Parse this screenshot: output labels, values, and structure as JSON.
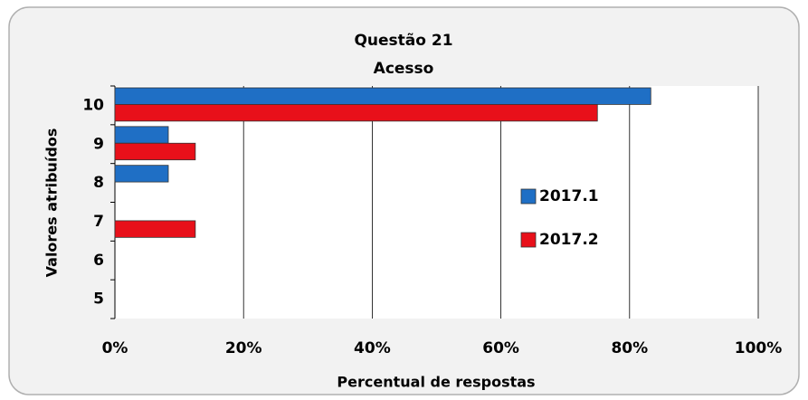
{
  "chart_data": {
    "type": "bar",
    "orientation": "horizontal",
    "title": "Questão 21",
    "subtitle": "Acesso",
    "x_label": "Percentual de respostas",
    "y_label": "Valores atribuídos",
    "categories": [
      "10",
      "9",
      "8",
      "7",
      "6",
      "5"
    ],
    "series": [
      {
        "name": "2017.1",
        "color": "#1f6fc5",
        "values": [
          83.3,
          8.3,
          8.3,
          0,
          0,
          0
        ]
      },
      {
        "name": "2017.2",
        "color": "#e8101a",
        "values": [
          75,
          12.5,
          0,
          12.5,
          0,
          0
        ]
      }
    ],
    "xlim": [
      0,
      100
    ],
    "xticks": [
      {
        "value": 0,
        "label": "0%"
      },
      {
        "value": 20,
        "label": "20%"
      },
      {
        "value": 40,
        "label": "40%"
      },
      {
        "value": 60,
        "label": "60%"
      },
      {
        "value": 80,
        "label": "80%"
      },
      {
        "value": 100,
        "label": "100%"
      }
    ],
    "grid": true,
    "legend": "right"
  }
}
